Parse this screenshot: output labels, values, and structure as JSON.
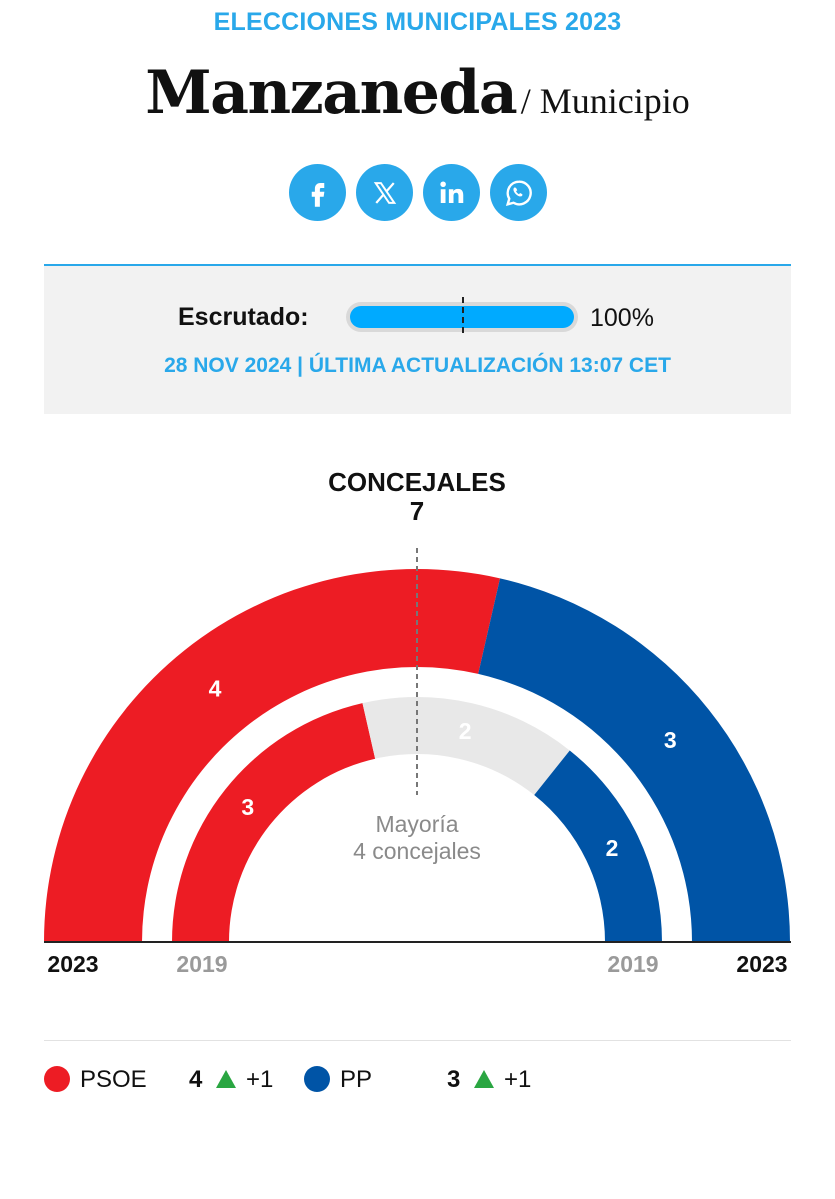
{
  "header": {
    "kicker": "ELECCIONES MUNICIPALES 2023",
    "place": "Manzaneda",
    "place_type": "/ Municipio"
  },
  "share": {
    "icons": [
      "facebook-icon",
      "x-icon",
      "linkedin-icon",
      "whatsapp-icon"
    ]
  },
  "scrutiny": {
    "label": "Escrutado:",
    "percent_text": "100%",
    "progress": 1.0,
    "update_text": "28 NOV 2024 | ÚLTIMA ACTUALIZACIÓN 13:07 CET"
  },
  "chart_data": {
    "type": "pie",
    "variant": "hemicycle",
    "title": "CONCEJALES",
    "total": 7,
    "majority_label": "Mayoría",
    "majority_sub": "4 concejales",
    "rings": [
      {
        "year": "2023",
        "segments": [
          {
            "party": "PSOE",
            "seats": 4,
            "color": "#ed1c24"
          },
          {
            "party": "PP",
            "seats": 3,
            "color": "#0054a6"
          }
        ]
      },
      {
        "year": "2019",
        "segments": [
          {
            "party": "PSOE",
            "seats": 3,
            "color": "#ed1c24"
          },
          {
            "party": "",
            "seats": 2,
            "color": "#e8e8e8"
          },
          {
            "party": "PP",
            "seats": 2,
            "color": "#0054a6"
          }
        ]
      }
    ],
    "legend": [
      {
        "party": "PSOE",
        "seats": 4,
        "change": "+1",
        "color": "#ed1c24"
      },
      {
        "party": "PP",
        "seats": 3,
        "change": "+1",
        "color": "#0054a6"
      }
    ]
  }
}
